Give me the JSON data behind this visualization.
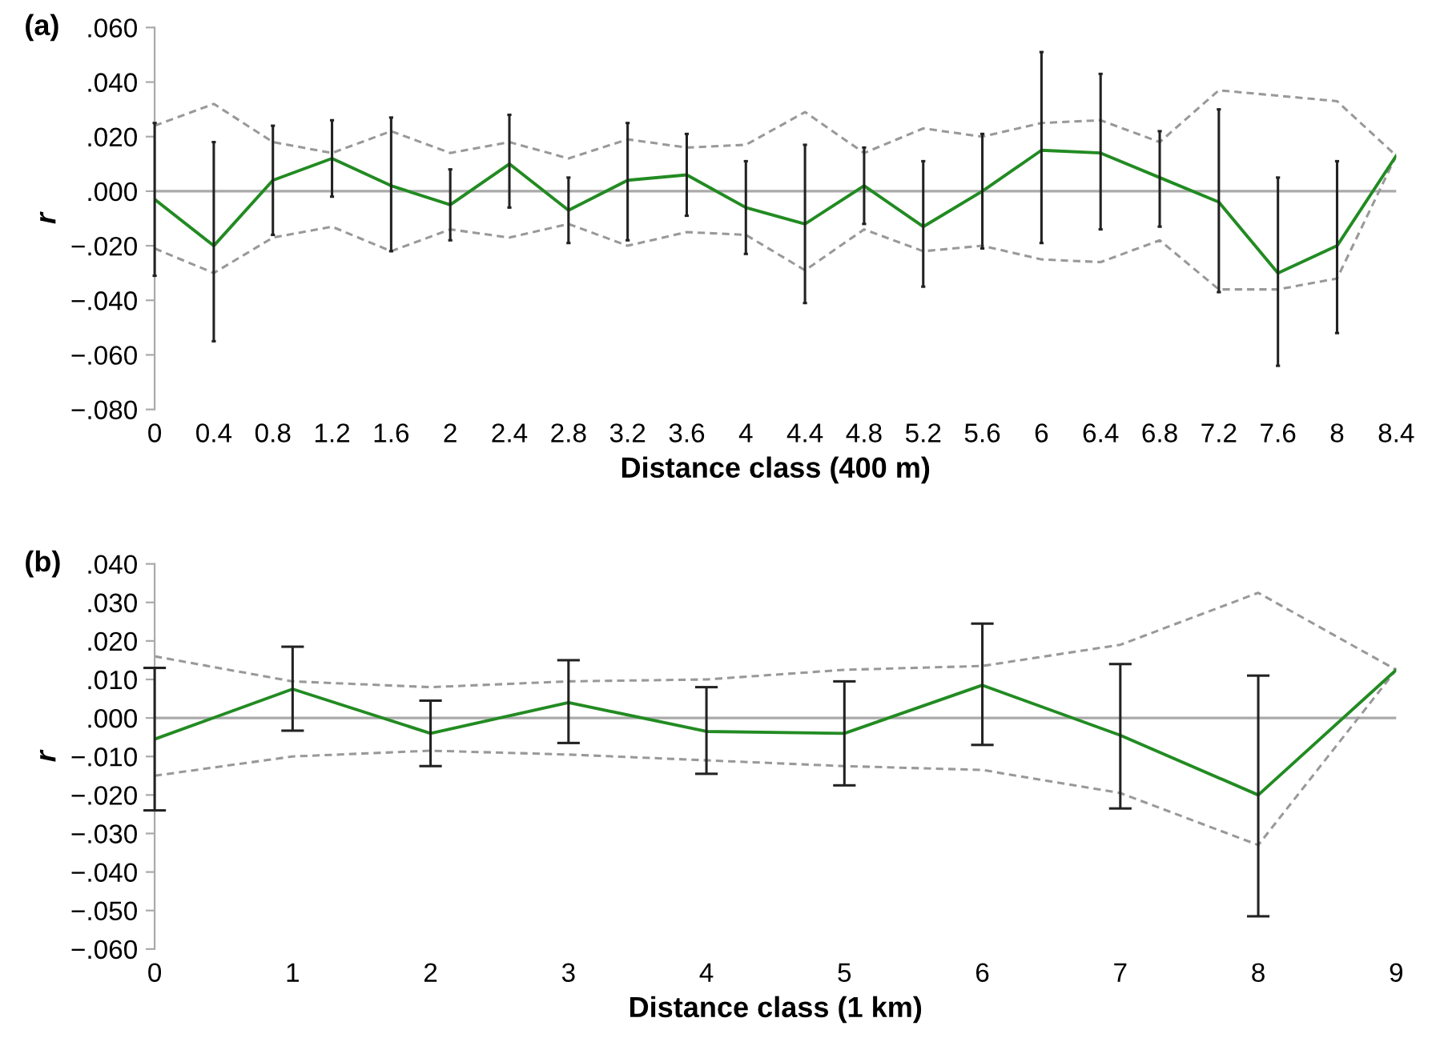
{
  "chart_data": [
    {
      "type": "line",
      "title": "(a)",
      "xlabel": "Distance class (400 m)",
      "ylabel": "r",
      "categories": [
        "0",
        "0.4",
        "0.8",
        "1.2",
        "1.6",
        "2",
        "2.4",
        "2.8",
        "3.2",
        "3.6",
        "4",
        "4.4",
        "4.8",
        "5.2",
        "5.6",
        "6",
        "6.4",
        "6.8",
        "7.2",
        "7.6",
        "8",
        "8.4"
      ],
      "series": [
        {
          "color": "#228b22",
          "line_style": "solid",
          "values": [
            -0.003,
            -0.02,
            0.004,
            0.012,
            0.002,
            -0.005,
            0.01,
            -0.007,
            0.004,
            0.006,
            -0.006,
            -0.012,
            0.002,
            -0.013,
            0.0,
            0.015,
            0.014,
            0.005,
            -0.004,
            -0.03,
            -0.02,
            0.013
          ],
          "errors": [
            [
              -0.031,
              0.025
            ],
            [
              -0.055,
              0.018
            ],
            [
              -0.016,
              0.024
            ],
            [
              -0.002,
              0.026
            ],
            [
              -0.022,
              0.027
            ],
            [
              -0.018,
              0.008
            ],
            [
              -0.006,
              0.028
            ],
            [
              -0.019,
              0.005
            ],
            [
              -0.018,
              0.025
            ],
            [
              -0.009,
              0.021
            ],
            [
              -0.023,
              0.011
            ],
            [
              -0.041,
              0.017
            ],
            [
              -0.012,
              0.016
            ],
            [
              -0.035,
              0.011
            ],
            [
              -0.021,
              0.021
            ],
            [
              -0.019,
              0.051
            ],
            [
              -0.014,
              0.043
            ],
            [
              -0.013,
              0.022
            ],
            [
              -0.037,
              0.03
            ],
            [
              -0.064,
              0.005
            ],
            [
              -0.052,
              0.011
            ],
            null
          ]
        },
        {
          "color": "#999999",
          "line_style": "dashed",
          "values": [
            0.024,
            0.032,
            0.018,
            0.014,
            0.022,
            0.014,
            0.018,
            0.012,
            0.019,
            0.016,
            0.017,
            0.029,
            0.014,
            0.023,
            0.02,
            0.025,
            0.026,
            0.018,
            0.037,
            0.035,
            0.033,
            0.013
          ]
        },
        {
          "color": "#999999",
          "line_style": "dashed",
          "values": [
            -0.021,
            -0.03,
            -0.017,
            -0.013,
            -0.022,
            -0.014,
            -0.017,
            -0.012,
            -0.02,
            -0.015,
            -0.016,
            -0.029,
            -0.014,
            -0.022,
            -0.02,
            -0.025,
            -0.026,
            -0.018,
            -0.036,
            -0.036,
            -0.032,
            0.013
          ]
        }
      ],
      "ylim": [
        -0.08,
        0.06
      ],
      "yticks": [
        {
          "value": -0.08,
          "label": "−.080"
        },
        {
          "value": -0.06,
          "label": "−.060"
        },
        {
          "value": -0.04,
          "label": "−.040"
        },
        {
          "value": -0.02,
          "label": "−.020"
        },
        {
          "value": 0,
          "label": ".000"
        },
        {
          "value": 0.02,
          "label": ".020"
        },
        {
          "value": 0.04,
          "label": ".040"
        },
        {
          "value": 0.06,
          "label": ".060"
        }
      ],
      "ref_lines": [
        {
          "axis": "y",
          "value": 0,
          "color": "#aaaaaa"
        }
      ],
      "grid": false,
      "legend": false,
      "marker": "none"
    },
    {
      "type": "line",
      "title": "(b)",
      "xlabel": "Distance class (1 km)",
      "ylabel": "r",
      "categories": [
        "0",
        "1",
        "2",
        "3",
        "4",
        "5",
        "6",
        "7",
        "8",
        "9"
      ],
      "series": [
        {
          "color": "#228b22",
          "line_style": "solid",
          "values": [
            -0.0055,
            0.0075,
            -0.004,
            0.004,
            -0.0035,
            -0.004,
            0.0085,
            -0.0045,
            -0.02,
            0.0125
          ],
          "errors": [
            [
              -0.024,
              0.013
            ],
            [
              -0.0033,
              0.0185
            ],
            [
              -0.0125,
              0.0045
            ],
            [
              -0.0065,
              0.015
            ],
            [
              -0.0145,
              0.008
            ],
            [
              -0.0175,
              0.0095
            ],
            [
              -0.007,
              0.0245
            ],
            [
              -0.0235,
              0.014
            ],
            [
              -0.0515,
              0.011
            ],
            null
          ]
        },
        {
          "color": "#999999",
          "line_style": "dashed",
          "values": [
            0.016,
            0.0095,
            0.008,
            0.0095,
            0.01,
            0.0125,
            0.0135,
            0.019,
            0.0325,
            0.0125
          ]
        },
        {
          "color": "#999999",
          "line_style": "dashed",
          "values": [
            -0.015,
            -0.01,
            -0.0085,
            -0.0095,
            -0.011,
            -0.0125,
            -0.0135,
            -0.0195,
            -0.033,
            0.0125
          ]
        }
      ],
      "ylim": [
        -0.06,
        0.04
      ],
      "yticks": [
        {
          "value": -0.06,
          "label": "−.060"
        },
        {
          "value": -0.05,
          "label": "−.050"
        },
        {
          "value": -0.04,
          "label": "−.040"
        },
        {
          "value": -0.03,
          "label": "−.030"
        },
        {
          "value": -0.02,
          "label": "−.020"
        },
        {
          "value": -0.01,
          "label": "−.010"
        },
        {
          "value": 0,
          "label": ".000"
        },
        {
          "value": 0.01,
          "label": ".010"
        },
        {
          "value": 0.02,
          "label": ".020"
        },
        {
          "value": 0.03,
          "label": ".030"
        },
        {
          "value": 0.04,
          "label": ".040"
        }
      ],
      "ref_lines": [
        {
          "axis": "y",
          "value": 0,
          "color": "#aaaaaa"
        }
      ],
      "grid": false,
      "legend": false,
      "marker": "none"
    }
  ]
}
